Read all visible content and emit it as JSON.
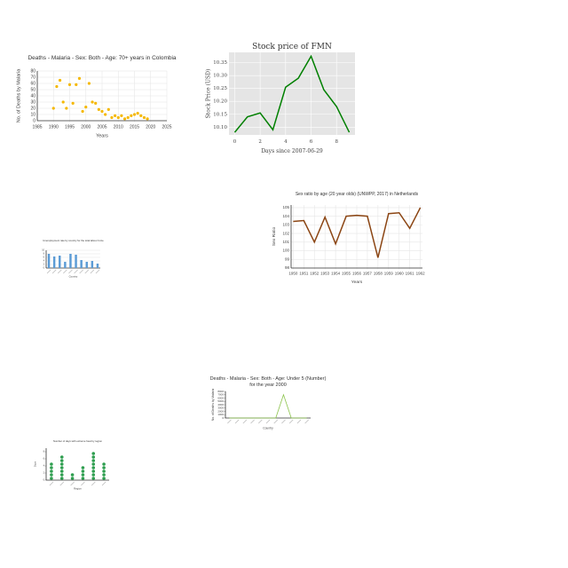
{
  "chart_data": [
    {
      "type": "scatter",
      "title": "Deaths - Malaria - Sex: Both - Age: 70+ years in Colombia",
      "x_label": "Years",
      "y_label": "No. of Deaths by Malaria",
      "x": [
        1990,
        1991,
        1992,
        1993,
        1994,
        1995,
        1996,
        1997,
        1998,
        1999,
        2000,
        2001,
        2002,
        2003,
        2004,
        2005,
        2006,
        2007,
        2008,
        2009,
        2010,
        2011,
        2012,
        2013,
        2014,
        2015,
        2016,
        2017,
        2018,
        2019
      ],
      "values": [
        20,
        55,
        65,
        30,
        20,
        58,
        28,
        58,
        68,
        15,
        22,
        60,
        30,
        28,
        18,
        15,
        10,
        18,
        5,
        8,
        5,
        8,
        3,
        5,
        8,
        10,
        12,
        8,
        5,
        3
      ],
      "color": "#f5b800",
      "xlim": [
        1985,
        2025
      ],
      "xticks": [
        1985,
        1990,
        1995,
        2000,
        2005,
        2010,
        2015,
        2020,
        2025
      ],
      "ylim": [
        0,
        80
      ],
      "yticks": [
        0,
        10,
        20,
        30,
        40,
        50,
        60,
        70,
        80
      ],
      "grid": true
    },
    {
      "type": "line",
      "title": "Stock price of FMN",
      "x_label": "Days since 2007-06-29",
      "y_label": "Stock Price (USD)",
      "x": [
        0,
        1,
        2,
        3,
        4,
        5,
        6,
        7,
        8,
        9
      ],
      "values": [
        10.08,
        10.14,
        10.155,
        10.09,
        10.255,
        10.29,
        10.375,
        10.245,
        10.18,
        10.08
      ],
      "color": "#008000",
      "background": "#e5e5e5",
      "xlim": [
        -0.45,
        9.45
      ],
      "xticks": [
        0,
        2,
        4,
        6,
        8
      ],
      "ylim": [
        10.07,
        10.39
      ],
      "yticks": [
        {
          "value": 10.1,
          "label": "10.10"
        },
        {
          "value": 10.15,
          "label": "10.15"
        },
        {
          "value": 10.2,
          "label": "10.20"
        },
        {
          "value": 10.25,
          "label": "10.25"
        },
        {
          "value": 10.3,
          "label": "10.30"
        },
        {
          "value": 10.35,
          "label": "10.35"
        }
      ],
      "grid": true
    },
    {
      "type": "bar",
      "title": "Unemployment rate by country for the total labour force",
      "x_label": "Country",
      "categories": [
        null,
        null,
        null,
        null,
        null,
        null,
        null,
        null,
        null,
        null
      ],
      "values": [
        8,
        6.5,
        7,
        3.5,
        8,
        7.5,
        4.5,
        3.5,
        4,
        2.5
      ],
      "color": "#5b9bd5",
      "ylim": [
        0,
        10
      ],
      "yticks": [
        0,
        2,
        4,
        6,
        8,
        10
      ],
      "grid": true
    },
    {
      "type": "line",
      "title": "Sex ratio by age (20 year olds) (UNWPP, 2017) in Netherlands",
      "x_label": "Years",
      "y_label": "Sex Ratio",
      "x": [
        1950,
        1951,
        1952,
        1953,
        1954,
        1955,
        1956,
        1957,
        1958,
        1959,
        1960,
        1961,
        1962
      ],
      "values": [
        103.4,
        103.5,
        101.0,
        103.9,
        100.8,
        104.0,
        104.1,
        104.0,
        99.2,
        104.3,
        104.4,
        102.6,
        105.0
      ],
      "color": "#8b4513",
      "xlim": [
        1949.8,
        1962.2
      ],
      "xticks": [
        1950,
        1951,
        1952,
        1953,
        1954,
        1955,
        1956,
        1957,
        1958,
        1959,
        1960,
        1961,
        1962
      ],
      "ylim": [
        98,
        105.3
      ],
      "yticks": [
        98,
        99,
        100,
        101,
        102,
        103,
        104,
        105
      ],
      "grid": true
    },
    {
      "type": "line",
      "title": "Deaths - Malaria - Sex: Both - Age: Under 5 (Number) for the year 2000",
      "x_label": "Country",
      "y_label": "No. of Deaths by Malaria",
      "categories": [
        null,
        null,
        null,
        null,
        null,
        null,
        null,
        null,
        null,
        null,
        null
      ],
      "values": [
        0,
        0,
        0,
        0,
        0,
        0,
        0,
        7000,
        0,
        0,
        0
      ],
      "color": "#8bc34a",
      "ylim": [
        0,
        8000
      ],
      "yticks": [
        0,
        1000,
        2000,
        3000,
        4000,
        5000,
        6000,
        7000,
        8000
      ],
      "grid": false
    },
    {
      "type": "dot",
      "title": "Number of days with extreme heat by region",
      "x_label": "Region",
      "y_label": "Days",
      "categories": [
        null,
        null,
        null,
        null,
        null,
        null
      ],
      "values": [
        5,
        7,
        2,
        4,
        8,
        5
      ],
      "color": "#2e9e4f",
      "ylim": [
        0,
        9
      ],
      "yticks": [
        0,
        2,
        4,
        6,
        8
      ],
      "grid": false
    }
  ]
}
